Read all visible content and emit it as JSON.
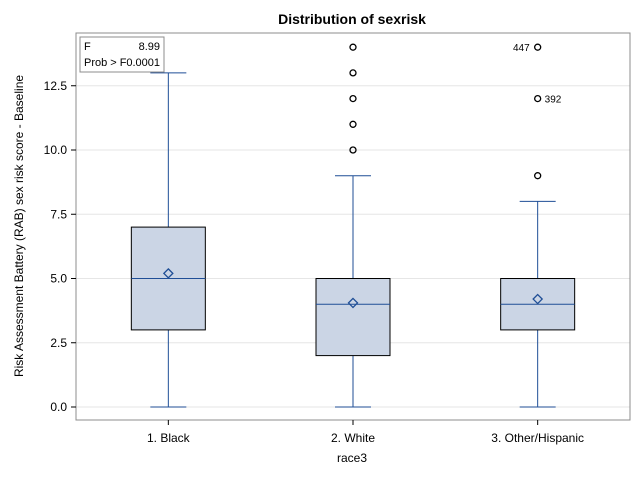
{
  "chart_data": {
    "type": "box",
    "title": "Distribution of sexrisk",
    "xlabel": "race3",
    "ylabel": "Risk Assessment Battery (RAB) sex risk score - Baseline",
    "ylim": [
      -0.5,
      14.5
    ],
    "yticks": [
      "0.0",
      "2.5",
      "5.0",
      "7.5",
      "10.0",
      "12.5"
    ],
    "ytick_values": [
      0,
      2.5,
      5,
      7.5,
      10,
      12.5
    ],
    "grid": true,
    "categories": [
      "1. Black",
      "2. White",
      "3. Other/Hispanic"
    ],
    "boxes": [
      {
        "category": "1. Black",
        "min": 0,
        "q1": 3,
        "median": 5,
        "q3": 7,
        "max": 13,
        "mean": 5.2,
        "outliers": []
      },
      {
        "category": "2. White",
        "min": 0,
        "q1": 2,
        "median": 4,
        "q3": 5,
        "max": 9,
        "mean": 4.05,
        "outliers": [
          10,
          11,
          12,
          13,
          14
        ]
      },
      {
        "category": "3. Other/Hispanic",
        "min": 0,
        "q1": 3,
        "median": 4,
        "q3": 5,
        "max": 8,
        "mean": 4.2,
        "outliers": [
          9,
          12,
          14
        ]
      }
    ],
    "outlier_labels": [
      {
        "category": "3. Other/Hispanic",
        "value": 14,
        "label": "447",
        "side": "left"
      },
      {
        "category": "3. Other/Hispanic",
        "value": 12,
        "label": "392",
        "side": "right"
      }
    ],
    "inset": {
      "rows": [
        {
          "label": "F",
          "value": "8.99"
        },
        {
          "label": "Prob > F",
          "value": "0.0001"
        }
      ]
    },
    "colors": {
      "box_fill": "#cbd5e5",
      "box_stroke": "#000000",
      "whisker": "#1f4e96",
      "median": "#1f4e96",
      "mean_marker": "#1f4e96",
      "outlier": "#000000",
      "grid": "#e6e6e6",
      "frame": "#8c8c8c"
    }
  }
}
